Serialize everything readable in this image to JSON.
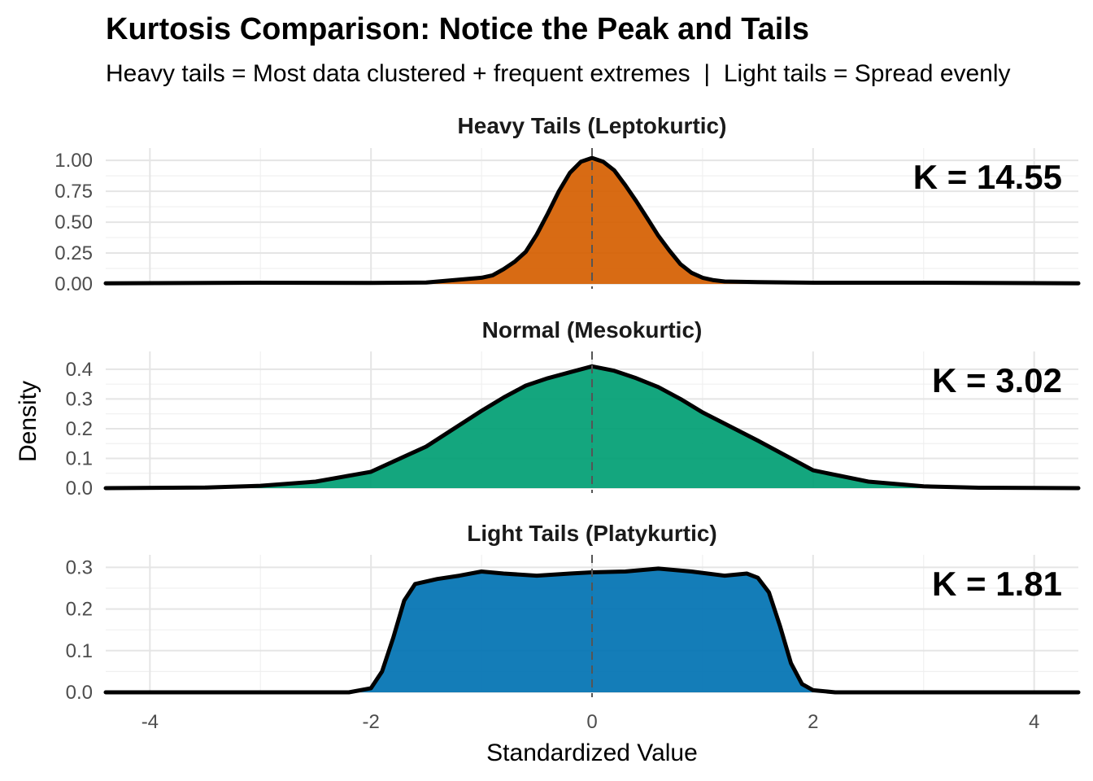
{
  "chart_data": {
    "type": "histogram-density-facets",
    "title": "Kurtosis Comparison: Notice the Peak and Tails",
    "subtitle": "Heavy tails = Most data clustered + frequent extremes  |  Light tails = Spread evenly",
    "xlabel": "Standardized Value",
    "ylabel": "Density",
    "xlim": [
      -4.4,
      4.4
    ],
    "x_ticks": [
      -4,
      -2,
      0,
      2,
      4
    ],
    "x_tick_labels": [
      "-4",
      "-2",
      "0",
      "2",
      "4"
    ],
    "reference_line_x": 0,
    "grid": true,
    "density_line_color": "#000000",
    "panels": [
      {
        "name": "Heavy Tails (Leptokurtic)",
        "kurtosis_label": "K = 14.55",
        "fill_color": "#D55E00",
        "ylim": [
          0,
          1.1
        ],
        "y_ticks": [
          0,
          0.25,
          0.5,
          0.75,
          1.0
        ],
        "y_tick_labels": [
          "0.00",
          "0.25",
          "0.50",
          "0.75",
          "1.00"
        ],
        "curve_x": [
          -4.4,
          -3.0,
          -2.0,
          -1.5,
          -1.0,
          -0.9,
          -0.8,
          -0.7,
          -0.6,
          -0.5,
          -0.4,
          -0.3,
          -0.2,
          -0.1,
          0.0,
          0.1,
          0.2,
          0.3,
          0.4,
          0.5,
          0.6,
          0.7,
          0.8,
          0.9,
          1.0,
          1.1,
          1.2,
          1.5,
          2.0,
          3.0,
          4.4
        ],
        "curve_y": [
          0.005,
          0.01,
          0.008,
          0.012,
          0.05,
          0.07,
          0.12,
          0.18,
          0.26,
          0.4,
          0.57,
          0.75,
          0.9,
          0.99,
          1.02,
          0.99,
          0.92,
          0.8,
          0.67,
          0.53,
          0.39,
          0.27,
          0.16,
          0.09,
          0.05,
          0.03,
          0.02,
          0.015,
          0.01,
          0.01,
          0.005
        ]
      },
      {
        "name": "Normal (Mesokurtic)",
        "kurtosis_label": "K = 3.02",
        "fill_color": "#009E73",
        "ylim": [
          0,
          0.46
        ],
        "y_ticks": [
          0,
          0.1,
          0.2,
          0.3,
          0.4
        ],
        "y_tick_labels": [
          "0.0",
          "0.1",
          "0.2",
          "0.3",
          "0.4"
        ],
        "curve_x": [
          -4.4,
          -3.5,
          -3.0,
          -2.5,
          -2.0,
          -1.5,
          -1.0,
          -0.8,
          -0.6,
          -0.4,
          -0.2,
          0.0,
          0.2,
          0.4,
          0.6,
          0.8,
          1.0,
          1.5,
          2.0,
          2.5,
          3.0,
          3.5,
          4.4
        ],
        "curve_y": [
          0.0,
          0.002,
          0.008,
          0.022,
          0.055,
          0.14,
          0.26,
          0.305,
          0.345,
          0.37,
          0.39,
          0.41,
          0.395,
          0.37,
          0.34,
          0.3,
          0.255,
          0.16,
          0.06,
          0.022,
          0.006,
          0.0015,
          0.0
        ]
      },
      {
        "name": "Light Tails (Platykurtic)",
        "kurtosis_label": "K = 1.81",
        "fill_color": "#0072B2",
        "ylim": [
          0,
          0.33
        ],
        "y_ticks": [
          0,
          0.1,
          0.2,
          0.3
        ],
        "y_tick_labels": [
          "0.0",
          "0.1",
          "0.2",
          "0.3"
        ],
        "curve_x": [
          -4.4,
          -2.2,
          -2.0,
          -1.9,
          -1.8,
          -1.7,
          -1.6,
          -1.4,
          -1.2,
          -1.0,
          -0.8,
          -0.5,
          -0.2,
          0.0,
          0.3,
          0.6,
          0.9,
          1.2,
          1.4,
          1.5,
          1.6,
          1.7,
          1.8,
          1.9,
          2.0,
          2.2,
          4.4
        ],
        "curve_y": [
          0.0,
          0.0,
          0.01,
          0.05,
          0.13,
          0.22,
          0.26,
          0.272,
          0.28,
          0.29,
          0.285,
          0.28,
          0.285,
          0.288,
          0.29,
          0.297,
          0.29,
          0.28,
          0.285,
          0.275,
          0.24,
          0.16,
          0.07,
          0.02,
          0.005,
          0.0,
          0.0
        ]
      }
    ]
  }
}
